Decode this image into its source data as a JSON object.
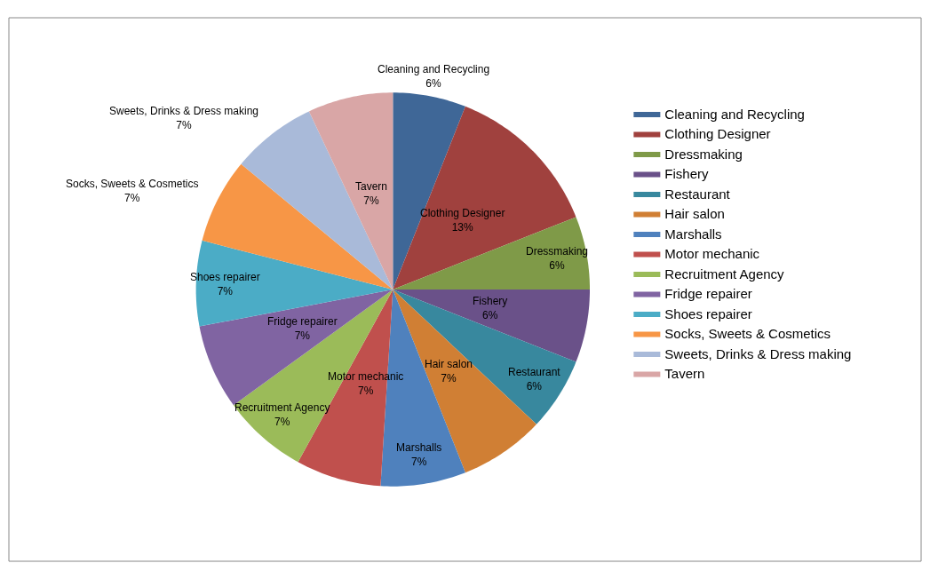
{
  "chart_data": {
    "type": "pie",
    "categories": [
      "Cleaning and Recycling",
      "Clothing Designer",
      "Dressmaking",
      "Fishery",
      "Restaurant",
      "Hair salon",
      "Marshalls",
      "Motor mechanic",
      "Recruitment Agency",
      "Fridge repairer",
      "Shoes repairer",
      "Socks, Sweets & Cosmetics",
      "Sweets, Drinks & Dress making",
      "Tavern"
    ],
    "values": [
      6,
      13,
      6,
      6,
      6,
      7,
      7,
      7,
      7,
      7,
      7,
      7,
      7,
      7
    ],
    "colors": [
      "#3F6797",
      "#A0413E",
      "#7F9A48",
      "#6A5189",
      "#38889E",
      "#D07F34",
      "#4F81BD",
      "#C0504D",
      "#9BBB59",
      "#8064A2",
      "#4BACC6",
      "#F79646",
      "#A9BAD9",
      "#D9A6A6"
    ],
    "value_labels": [
      "6%",
      "13%",
      "6%",
      "6%",
      "6%",
      "7%",
      "7%",
      "7%",
      "7%",
      "7%",
      "7%",
      "7%",
      "7%",
      "7%"
    ],
    "legend": "right"
  }
}
